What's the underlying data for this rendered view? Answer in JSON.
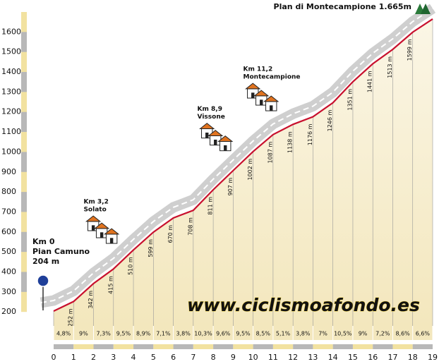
{
  "chart_data": {
    "type": "elevation-profile",
    "x": [
      0,
      1,
      2,
      3,
      4,
      5,
      6,
      7,
      8,
      9,
      10,
      11,
      12,
      13,
      14,
      15,
      16,
      17,
      18,
      19
    ],
    "values": [
      204,
      252,
      342,
      415,
      510,
      599,
      670,
      708,
      811,
      907,
      1002,
      1087,
      1138,
      1176,
      1246,
      1351,
      1441,
      1513,
      1599,
      1665
    ],
    "value_labels": [
      "204 m",
      "252 m",
      "342 m",
      "415 m",
      "510 m",
      "599 m",
      "670 m",
      "708 m",
      "811 m",
      "907 m",
      "1002 m",
      "1087 m",
      "1138 m",
      "1176 m",
      "1246 m",
      "1351 m",
      "1441 m",
      "1513 m",
      "1599 m",
      "1.665m"
    ],
    "gradients": [
      4.8,
      9,
      7.3,
      9.5,
      8.9,
      7.1,
      3.8,
      10.3,
      9.6,
      9.5,
      8.5,
      5.1,
      3.8,
      7,
      10.5,
      9,
      7.2,
      8.6,
      6.6
    ],
    "gradient_labels": [
      "4,8%",
      "9%",
      "7,3%",
      "9,5%",
      "8,9%",
      "7,1%",
      "3,8%",
      "10,3%",
      "9,6%",
      "9,5%",
      "8,5%",
      "5,1%",
      "3,8%",
      "7%",
      "10,5%",
      "9%",
      "7,2%",
      "8,6%",
      "6,6%"
    ],
    "xlim": [
      0,
      19
    ],
    "ylim": [
      130,
      1700
    ],
    "yticks": [
      200,
      300,
      400,
      500,
      600,
      700,
      800,
      900,
      1000,
      1100,
      1200,
      1300,
      1400,
      1500,
      1600
    ],
    "color": "#c8102e",
    "start": {
      "km": "Km 0",
      "name": "Pian Camuno"
    },
    "finish": "Plan di Montecampione",
    "towns": [
      {
        "km": 3.2,
        "km_label": "Km 3,2",
        "name": "Solato"
      },
      {
        "km": 8.9,
        "km_label": "Km 8,9",
        "name": "Vissone"
      },
      {
        "km": 11.2,
        "km_label": "Km 11,2",
        "name": "Montecampione"
      }
    ],
    "watermark": "www.ciclismoafondo.es"
  }
}
